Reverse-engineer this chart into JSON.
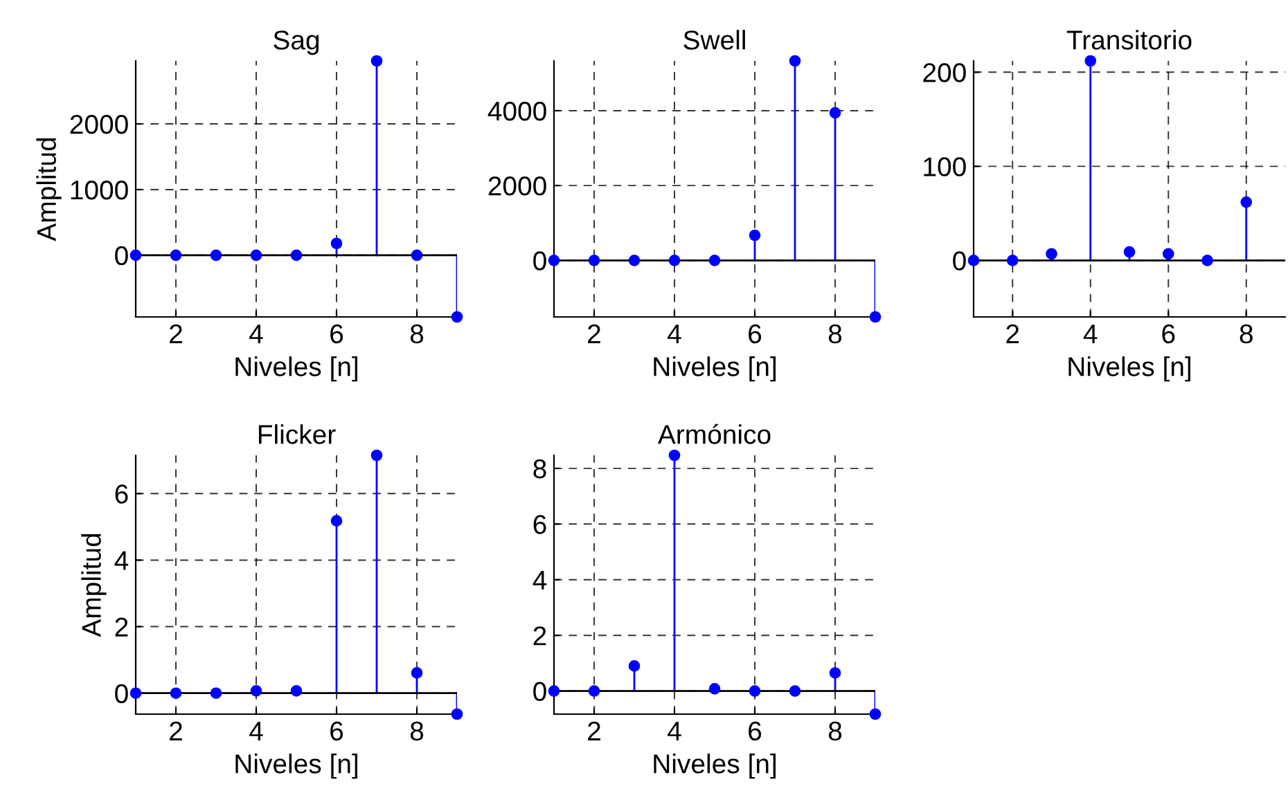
{
  "chart_data": [
    {
      "type": "lollipop",
      "title": "Sag",
      "xlabel": "Niveles [n]",
      "ylabel": "Amplitud",
      "x": [
        1,
        2,
        3,
        4,
        5,
        6,
        7,
        8,
        9
      ],
      "values": [
        0,
        0,
        0,
        0,
        0,
        180,
        2960,
        0,
        -940
      ],
      "color": "#0000ff",
      "xlim": [
        1,
        9
      ],
      "xticks": [
        2,
        4,
        6,
        8
      ],
      "ylim": [
        -940,
        2960
      ],
      "yticks": [
        0,
        1000,
        2000
      ],
      "grid": true,
      "marker": "circle"
    },
    {
      "type": "lollipop",
      "title": "Swell",
      "xlabel": "Niveles [n]",
      "x": [
        1,
        2,
        3,
        4,
        5,
        6,
        7,
        8,
        9
      ],
      "values": [
        0,
        0,
        0,
        0,
        0,
        670,
        5330,
        3940,
        -1510
      ],
      "color": "#0000ff",
      "xlim": [
        1,
        9
      ],
      "xticks": [
        2,
        4,
        6,
        8
      ],
      "ylim": [
        -1510,
        5330
      ],
      "yticks": [
        0,
        2000,
        4000
      ],
      "grid": true,
      "marker": "circle"
    },
    {
      "type": "lollipop",
      "title": "Transitorio",
      "xlabel": "Niveles [n]",
      "x": [
        1,
        2,
        3,
        4,
        5,
        6,
        7,
        8
      ],
      "values": [
        0,
        0,
        7,
        212,
        9,
        7,
        0,
        62
      ],
      "color": "#0000ff",
      "xlim": [
        1,
        9
      ],
      "xticks": [
        2,
        4,
        6,
        8
      ],
      "ylim": [
        -60,
        212
      ],
      "yticks": [
        0,
        100,
        200
      ],
      "grid": true,
      "marker": "circle"
    },
    {
      "type": "lollipop",
      "title": "Flicker",
      "xlabel": "Niveles [n]",
      "ylabel": "Amplitud",
      "x": [
        1,
        2,
        3,
        4,
        5,
        6,
        7,
        8,
        9
      ],
      "values": [
        0,
        0,
        0,
        0.07,
        0.07,
        5.18,
        7.15,
        0.61,
        -0.63
      ],
      "color": "#0000ff",
      "xlim": [
        1,
        9
      ],
      "xticks": [
        2,
        4,
        6,
        8
      ],
      "ylim": [
        -0.63,
        7.15
      ],
      "yticks": [
        0,
        2,
        4,
        6
      ],
      "grid": true,
      "marker": "circle"
    },
    {
      "type": "lollipop",
      "title": "Armónico",
      "xlabel": "Niveles [n]",
      "x": [
        1,
        2,
        3,
        4,
        5,
        6,
        7,
        8,
        9
      ],
      "values": [
        0,
        0,
        0.9,
        8.47,
        0.08,
        0,
        0,
        0.65,
        -0.83
      ],
      "color": "#0000ff",
      "xlim": [
        1,
        9
      ],
      "xticks": [
        2,
        4,
        6,
        8
      ],
      "ylim": [
        -0.83,
        8.47
      ],
      "yticks": [
        0,
        2,
        4,
        6,
        8
      ],
      "grid": true,
      "marker": "circle"
    }
  ]
}
